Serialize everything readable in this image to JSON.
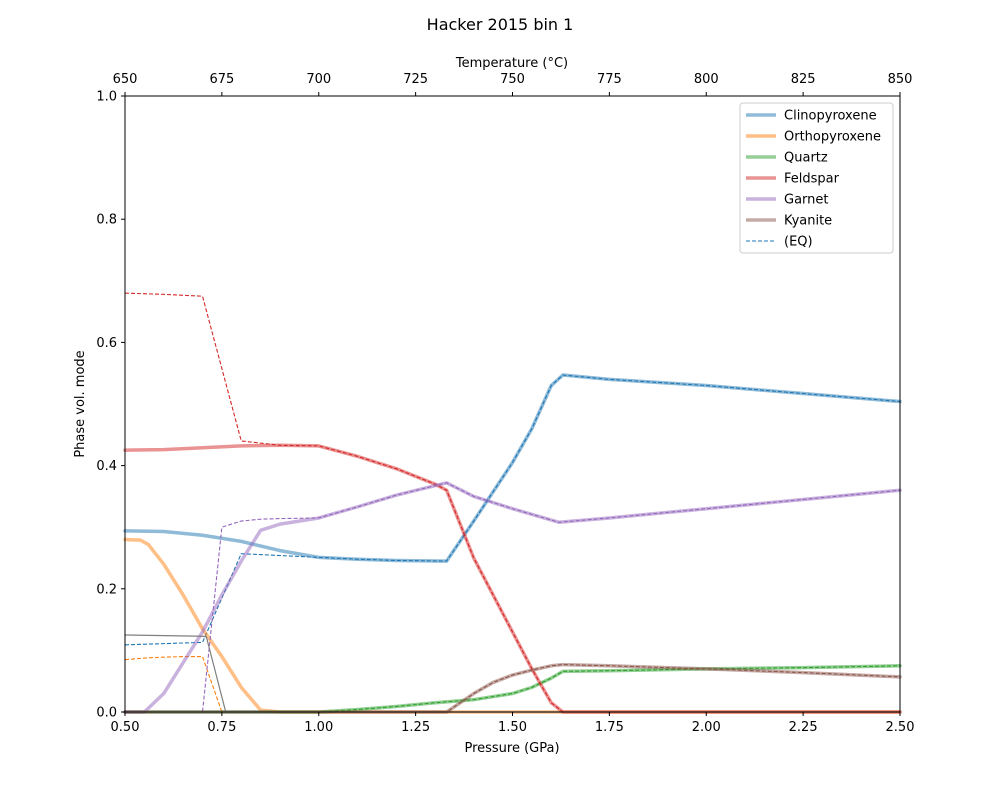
{
  "chart_data": {
    "type": "line",
    "title": "Hacker 2015 bin 1",
    "xlabel": "Pressure (GPa)",
    "ylabel": "Phase vol. mode",
    "top_xlabel": "Temperature (°C)",
    "xlim": [
      0.5,
      2.5
    ],
    "ylim": [
      0.0,
      1.0
    ],
    "top_xlim": [
      650,
      850
    ],
    "xticks": [
      "0.50",
      "0.75",
      "1.00",
      "1.25",
      "1.50",
      "1.75",
      "2.00",
      "2.25",
      "2.50"
    ],
    "yticks": [
      "0.0",
      "0.2",
      "0.4",
      "0.6",
      "0.8",
      "1.0"
    ],
    "top_xticks": [
      "650",
      "675",
      "700",
      "725",
      "750",
      "775",
      "800",
      "825",
      "850"
    ],
    "grid": false,
    "legend_position": "top-right",
    "legend": [
      "Clinopyroxene",
      "Orthopyroxene",
      "Quartz",
      "Feldspar",
      "Garnet",
      "Kyanite",
      "(EQ)"
    ],
    "series": [
      {
        "name": "Clinopyroxene",
        "color": "#1f77b4",
        "x": [
          0.5,
          0.6,
          0.7,
          0.8,
          0.9,
          1.0,
          1.1,
          1.2,
          1.33,
          1.4,
          1.5,
          1.55,
          1.6,
          1.63,
          1.75,
          2.0,
          2.25,
          2.5
        ],
        "y": [
          0.294,
          0.293,
          0.287,
          0.277,
          0.262,
          0.251,
          0.248,
          0.246,
          0.245,
          0.31,
          0.405,
          0.46,
          0.53,
          0.547,
          0.54,
          0.53,
          0.517,
          0.504
        ],
        "eq_y": [
          0.109,
          0.111,
          0.113,
          0.257,
          0.254,
          0.251,
          0.248,
          0.246,
          0.245,
          0.31,
          0.405,
          0.46,
          0.53,
          0.547,
          0.54,
          0.53,
          0.517,
          0.504
        ]
      },
      {
        "name": "Orthopyroxene",
        "color": "#ff7f0e",
        "x": [
          0.5,
          0.54,
          0.56,
          0.6,
          0.65,
          0.7,
          0.75,
          0.8,
          0.85,
          0.9,
          2.5
        ],
        "y": [
          0.28,
          0.279,
          0.272,
          0.24,
          0.19,
          0.135,
          0.09,
          0.04,
          0.003,
          0.0,
          0.0
        ],
        "eq_y": [
          0.085,
          0.087,
          0.088,
          0.089,
          0.09,
          0.09,
          0.0,
          0.0,
          0.0,
          0.0,
          0.0
        ]
      },
      {
        "name": "Quartz",
        "color": "#2ca02c",
        "x": [
          0.5,
          0.85,
          1.0,
          1.1,
          1.2,
          1.3,
          1.4,
          1.5,
          1.55,
          1.6,
          1.63,
          1.75,
          2.0,
          2.25,
          2.5
        ],
        "y": [
          0.0,
          0.0,
          0.0,
          0.004,
          0.009,
          0.015,
          0.02,
          0.03,
          0.04,
          0.055,
          0.066,
          0.067,
          0.07,
          0.072,
          0.075
        ],
        "eq_y": [
          0.0,
          0.0,
          0.0,
          0.004,
          0.009,
          0.015,
          0.02,
          0.03,
          0.04,
          0.055,
          0.066,
          0.067,
          0.07,
          0.072,
          0.075
        ]
      },
      {
        "name": "Feldspar",
        "color": "#d62728",
        "x": [
          0.5,
          0.6,
          0.7,
          0.8,
          0.9,
          1.0,
          1.1,
          1.2,
          1.3,
          1.33,
          1.4,
          1.5,
          1.55,
          1.6,
          1.63,
          2.5
        ],
        "y": [
          0.425,
          0.426,
          0.429,
          0.432,
          0.433,
          0.432,
          0.415,
          0.395,
          0.37,
          0.36,
          0.25,
          0.13,
          0.07,
          0.015,
          0.0,
          0.0
        ],
        "eq_y": [
          0.68,
          0.678,
          0.675,
          0.44,
          0.433,
          0.432,
          0.415,
          0.395,
          0.37,
          0.36,
          0.25,
          0.13,
          0.07,
          0.015,
          0.0,
          0.0
        ]
      },
      {
        "name": "Garnet",
        "color": "#9467bd",
        "x": [
          0.5,
          0.55,
          0.6,
          0.65,
          0.7,
          0.75,
          0.8,
          0.85,
          0.9,
          1.0,
          1.1,
          1.2,
          1.33,
          1.4,
          1.5,
          1.62,
          1.75,
          2.0,
          2.25,
          2.5
        ],
        "y": [
          0.0,
          0.0,
          0.03,
          0.08,
          0.13,
          0.19,
          0.245,
          0.295,
          0.305,
          0.315,
          0.333,
          0.352,
          0.372,
          0.35,
          0.33,
          0.308,
          0.315,
          0.33,
          0.345,
          0.36
        ],
        "eq_y": [
          0.0,
          0.0,
          0.0,
          0.0,
          0.0,
          0.3,
          0.31,
          0.313,
          0.314,
          0.315,
          0.333,
          0.352,
          0.372,
          0.35,
          0.33,
          0.308,
          0.315,
          0.33,
          0.345,
          0.36
        ]
      },
      {
        "name": "Kyanite",
        "color": "#8c564b",
        "x": [
          0.5,
          1.33,
          1.4,
          1.45,
          1.5,
          1.55,
          1.6,
          1.63,
          1.75,
          2.0,
          2.25,
          2.5
        ],
        "y": [
          0.0,
          0.0,
          0.03,
          0.048,
          0.06,
          0.068,
          0.075,
          0.077,
          0.075,
          0.07,
          0.064,
          0.057
        ],
        "eq_y": [
          0.0,
          0.0,
          0.03,
          0.048,
          0.06,
          0.068,
          0.075,
          0.077,
          0.075,
          0.07,
          0.064,
          0.057
        ]
      },
      {
        "name": "",
        "color": "#7f7f7f",
        "solid_only": true,
        "x": [
          0.5,
          0.7,
          0.71,
          0.76,
          2.5
        ],
        "y": [
          0.125,
          0.123,
          0.122,
          0.0,
          0.0
        ]
      }
    ]
  }
}
